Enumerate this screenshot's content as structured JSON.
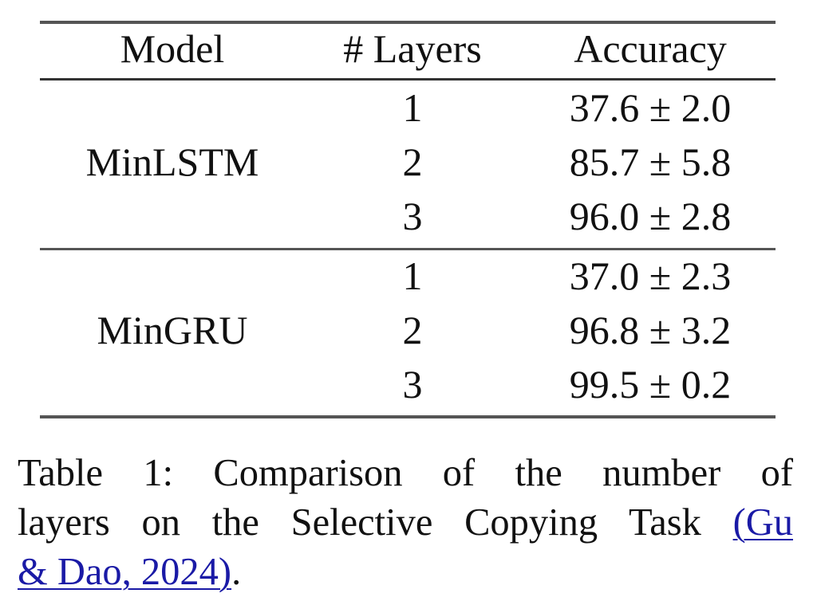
{
  "table": {
    "headers": [
      "Model",
      "# Layers",
      "Accuracy"
    ],
    "groups": [
      {
        "model": "MinLSTM",
        "rows": [
          {
            "layers": "1",
            "accuracy": "37.6 ± 2.0"
          },
          {
            "layers": "2",
            "accuracy": "85.7 ± 5.8"
          },
          {
            "layers": "3",
            "accuracy": "96.0 ± 2.8"
          }
        ]
      },
      {
        "model": "MinGRU",
        "rows": [
          {
            "layers": "1",
            "accuracy": "37.0 ± 2.3"
          },
          {
            "layers": "2",
            "accuracy": "96.8 ± 3.2"
          },
          {
            "layers": "3",
            "accuracy": "99.5 ± 0.2"
          }
        ]
      }
    ]
  },
  "caption": {
    "line1": "Table 1:  Comparison of the number of",
    "line2_text": "layers on the Selective Copying Task ",
    "line2_cite": "(Gu",
    "line3_cite": "& Dao, 2024)",
    "line3_end": ".",
    "link_color": "#1a1aa6"
  }
}
